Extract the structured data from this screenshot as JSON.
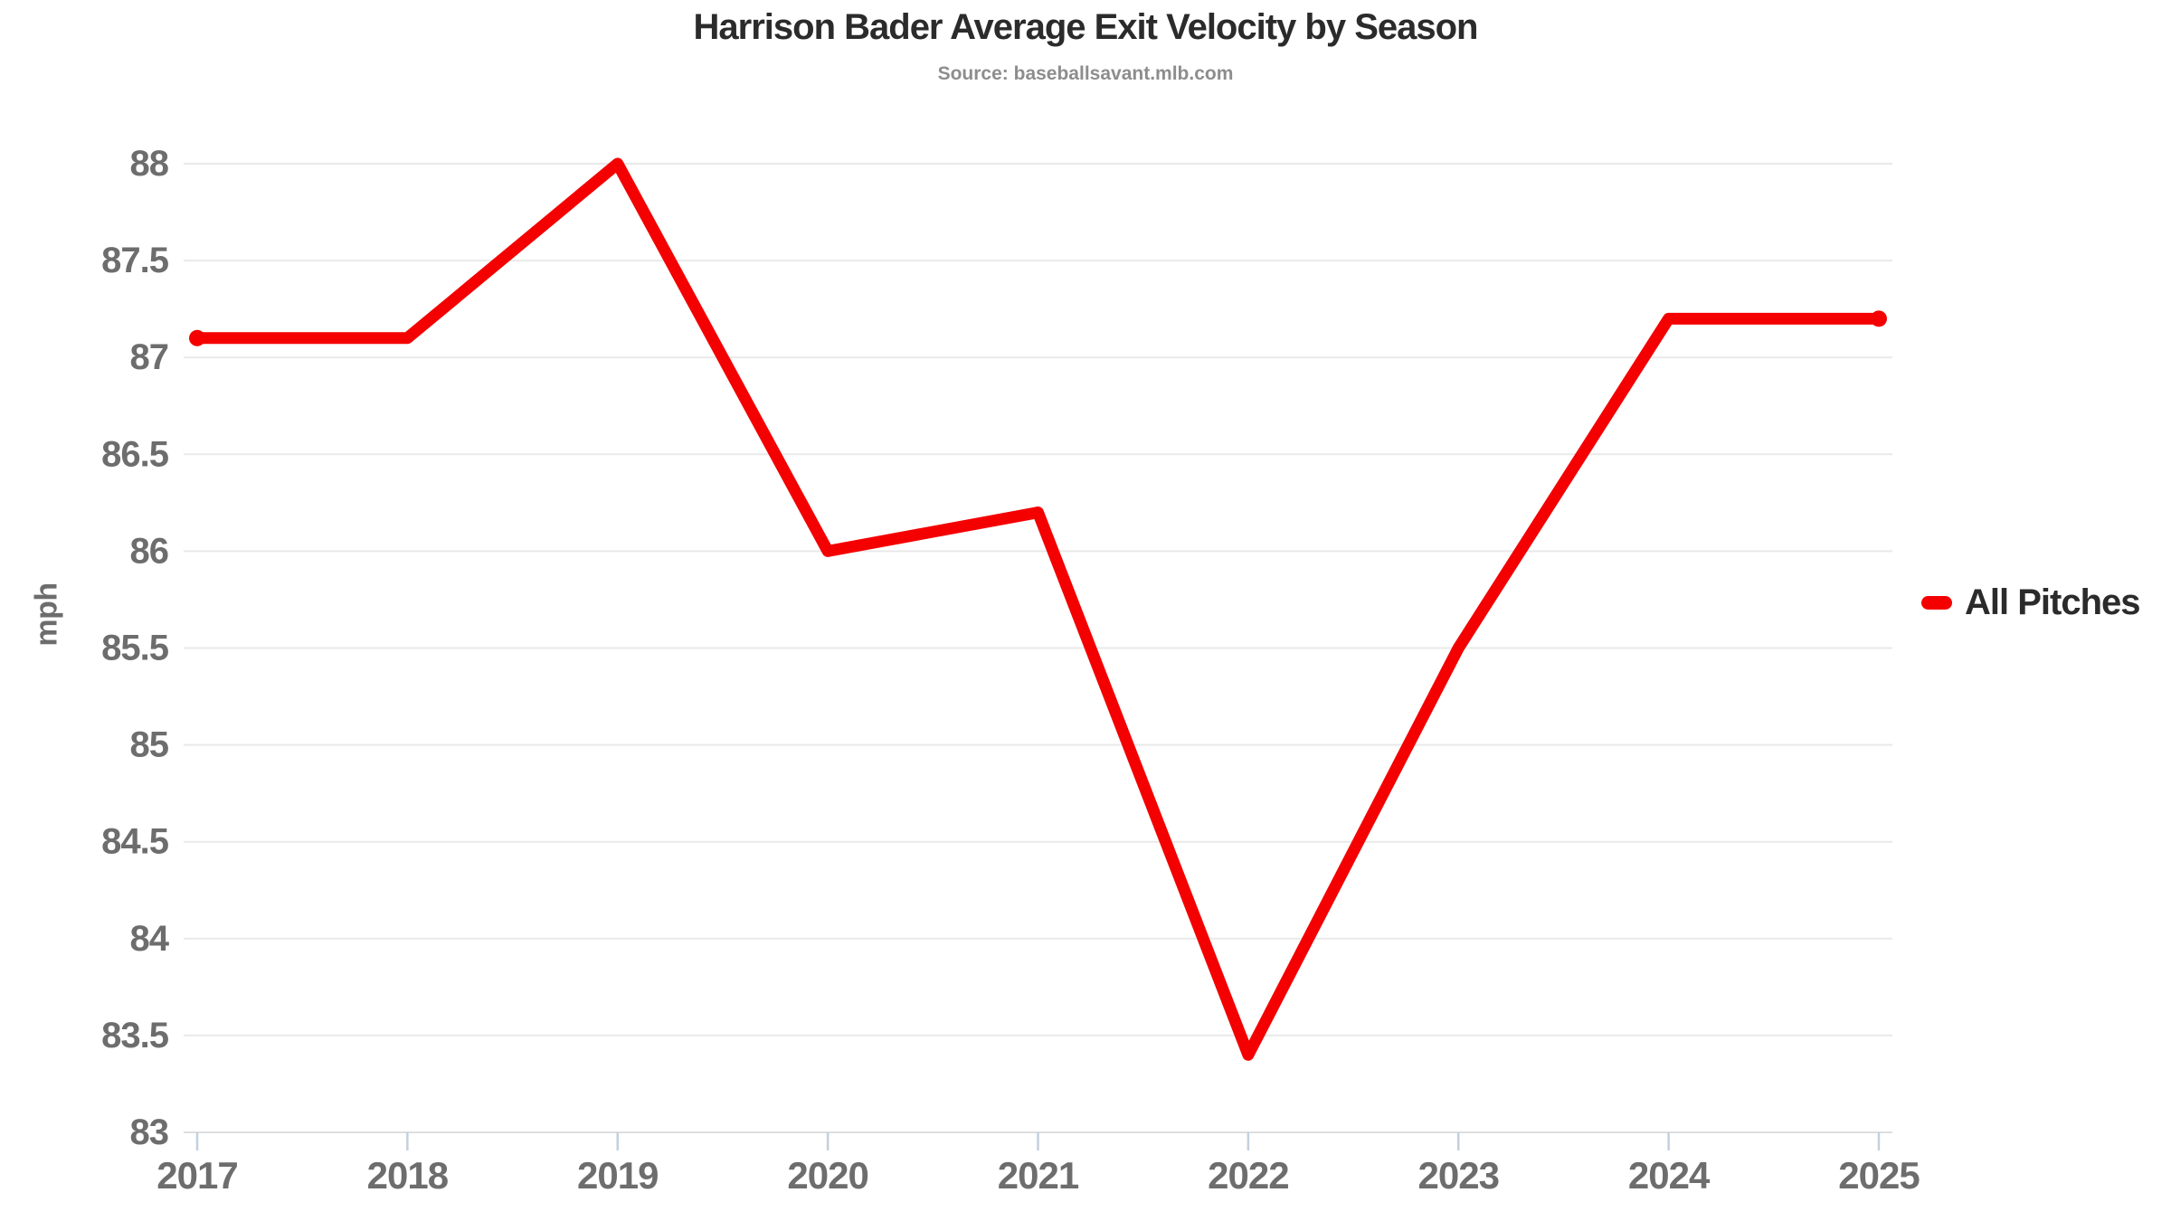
{
  "header": {
    "title": "Harrison Bader Average Exit Velocity by Season",
    "subtitle": "Source: baseballsavant.mlb.com"
  },
  "legend": {
    "label": "All Pitches",
    "color": "#f40000"
  },
  "axes": {
    "y_title": "mph"
  },
  "colors": {
    "line": "#f40000",
    "gridline": "#e9e9e9",
    "axis_line": "#dedede",
    "tick_mark": "#c3d0de",
    "tick_label": "#6d6d6d"
  },
  "chart_data": {
    "type": "line",
    "title": "Harrison Bader Average Exit Velocity by Season",
    "subtitle": "Source: baseballsavant.mlb.com",
    "xlabel": "",
    "ylabel": "mph",
    "categories": [
      2017,
      2018,
      2019,
      2020,
      2021,
      2022,
      2023,
      2024,
      2025
    ],
    "series": [
      {
        "name": "All Pitches",
        "color": "#f40000",
        "values": [
          87.1,
          87.1,
          88.0,
          86.0,
          86.2,
          83.4,
          85.5,
          87.2,
          87.2
        ]
      }
    ],
    "ylim": [
      83,
      88
    ],
    "ytick_step": 0.5,
    "yticks": [
      83,
      83.5,
      84,
      84.5,
      85,
      85.5,
      86,
      86.5,
      87,
      87.5,
      88
    ],
    "grid": "horizontal",
    "legend_position": "right",
    "endpoint_dots": true
  }
}
